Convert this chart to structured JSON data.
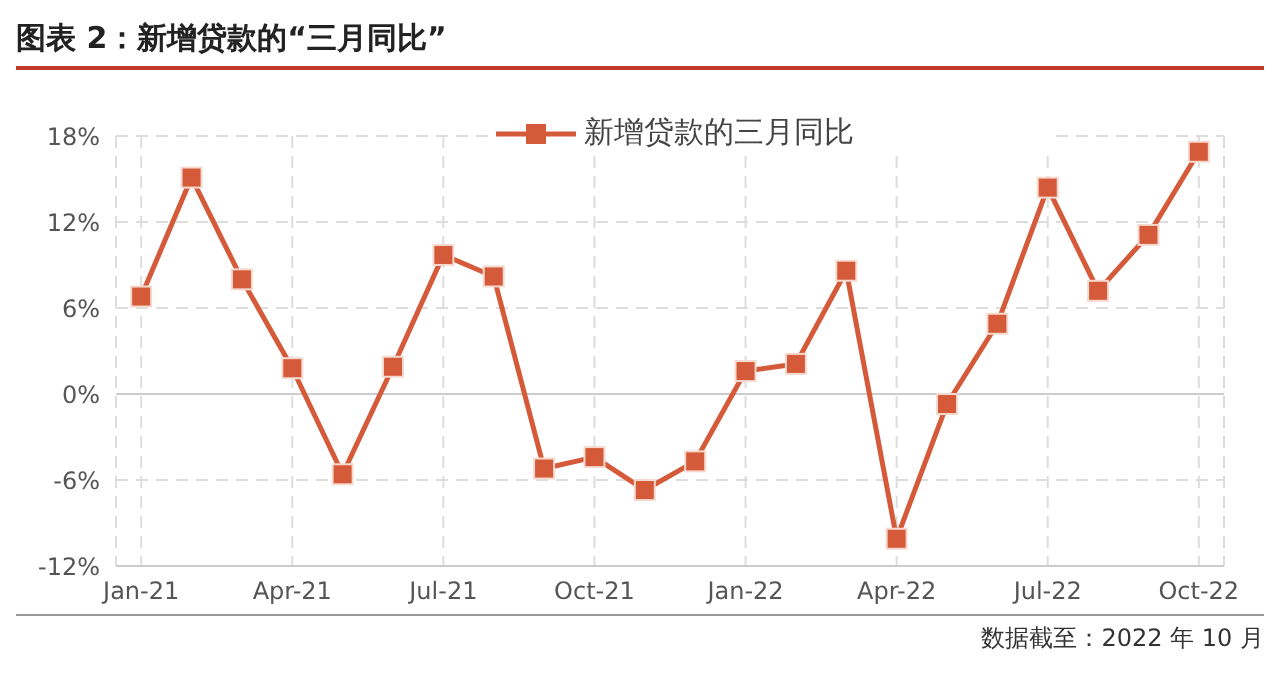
{
  "chart_data": {
    "type": "line",
    "title": "图表 2：新增贷款的“三月同比”",
    "categories": [
      "Jan-21",
      null,
      null,
      "Apr-21",
      null,
      null,
      "Jul-21",
      null,
      null,
      "Oct-21",
      null,
      null,
      "Jan-22",
      null,
      null,
      "Apr-22",
      null,
      null,
      "Jul-22",
      null,
      null,
      "Oct-22"
    ],
    "series": [
      {
        "name": "新增贷款的三月同比",
        "color": "#d45a3a",
        "values": [
          6.8,
          15.1,
          8.0,
          1.8,
          -5.6,
          1.9,
          9.7,
          8.2,
          -5.2,
          -4.4,
          -6.7,
          -4.7,
          1.6,
          2.1,
          8.6,
          -10.1,
          -0.7,
          4.9,
          14.4,
          7.2,
          11.1,
          16.9
        ]
      }
    ],
    "ylim": [
      -12,
      18
    ],
    "yticks": [
      {
        "value": -12,
        "label": "-12%"
      },
      {
        "value": -6,
        "label": "-6%"
      },
      {
        "value": 0,
        "label": "0%"
      },
      {
        "value": 6,
        "label": "6%"
      },
      {
        "value": 12,
        "label": "12%"
      },
      {
        "value": 18,
        "label": "18%"
      }
    ],
    "grid": true,
    "legend": "top",
    "marker": "square",
    "line_style": "solid",
    "annotations": [
      "数据截至：2022 年 10 月"
    ]
  }
}
